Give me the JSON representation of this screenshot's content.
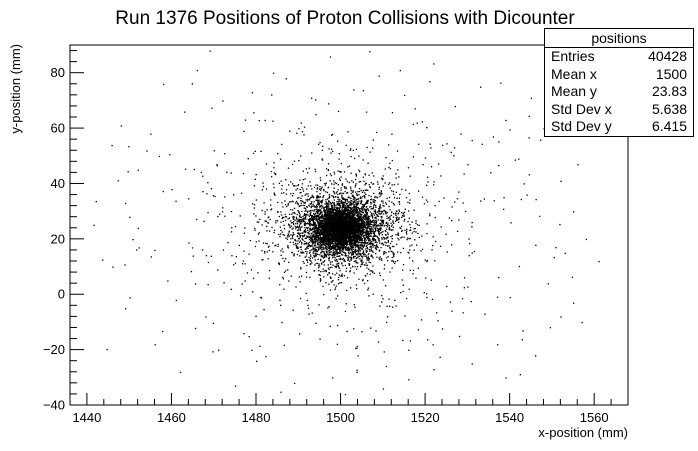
{
  "chart_data": {
    "type": "scatter",
    "title": "Run 1376 Positions of Proton Collisions with Dicounter",
    "xlabel": "x-position (mm)",
    "ylabel": "y-position (mm)",
    "xlim": [
      1436,
      1568
    ],
    "ylim": [
      -40,
      90
    ],
    "xticks": [
      1440,
      1460,
      1480,
      1500,
      1520,
      1540,
      1560
    ],
    "yticks": [
      -40,
      -20,
      0,
      20,
      40,
      60,
      80
    ],
    "grid": false,
    "series": [
      {
        "name": "positions",
        "center": [
          1500,
          23.83
        ],
        "std": [
          5.638,
          6.415
        ],
        "count": 40428,
        "background_points": [
          [
            1448,
            61
          ],
          [
            1452,
            45
          ],
          [
            1455,
            58
          ],
          [
            1458,
            76
          ],
          [
            1460,
            38
          ],
          [
            1463,
            66
          ],
          [
            1466,
            81
          ],
          [
            1470,
            52
          ],
          [
            1472,
            70
          ],
          [
            1474,
            44
          ],
          [
            1477,
            59
          ],
          [
            1479,
            73
          ],
          [
            1482,
            63
          ],
          [
            1485,
            51
          ],
          [
            1487,
            78
          ],
          [
            1490,
            60
          ],
          [
            1493,
            71
          ],
          [
            1495,
            55
          ],
          [
            1497,
            69
          ],
          [
            1503,
            74
          ],
          [
            1506,
            66
          ],
          [
            1509,
            79
          ],
          [
            1512,
            58
          ],
          [
            1515,
            72
          ],
          [
            1518,
            62
          ],
          [
            1521,
            77
          ],
          [
            1524,
            54
          ],
          [
            1527,
            68
          ],
          [
            1530,
            47
          ],
          [
            1533,
            75
          ],
          [
            1536,
            57
          ],
          [
            1539,
            63
          ],
          [
            1542,
            49
          ],
          [
            1545,
            71
          ],
          [
            1548,
            60
          ],
          [
            1552,
            41
          ],
          [
            1555,
            30
          ],
          [
            1558,
            20
          ],
          [
            1561,
            12
          ],
          [
            1446,
            10
          ],
          [
            1449,
            -5
          ],
          [
            1452,
            24
          ],
          [
            1456,
            -18
          ],
          [
            1459,
            5
          ],
          [
            1462,
            -28
          ],
          [
            1465,
            14
          ],
          [
            1468,
            -8
          ],
          [
            1471,
            -20
          ],
          [
            1474,
            2
          ],
          [
            1477,
            -14
          ],
          [
            1480,
            -24
          ],
          [
            1483,
            6
          ],
          [
            1486,
            -10
          ],
          [
            1489,
            -32
          ],
          [
            1492,
            -2
          ],
          [
            1495,
            -16
          ],
          [
            1498,
            -30
          ],
          [
            1501,
            -6
          ],
          [
            1504,
            -22
          ],
          [
            1507,
            -12
          ],
          [
            1510,
            -34
          ],
          [
            1513,
            -4
          ],
          [
            1516,
            -20
          ],
          [
            1519,
            -9
          ],
          [
            1522,
            -27
          ],
          [
            1525,
            3
          ],
          [
            1528,
            -15
          ],
          [
            1531,
            -25
          ],
          [
            1534,
            -7
          ],
          [
            1537,
            -18
          ],
          [
            1540,
            -1
          ],
          [
            1543,
            -13
          ],
          [
            1546,
            -22
          ],
          [
            1549,
            4
          ],
          [
            1552,
            -8
          ],
          [
            1555,
            -3
          ],
          [
            1449,
            33
          ],
          [
            1557,
            -10
          ],
          [
            1450,
            28
          ],
          [
            1553,
            15
          ],
          [
            1457,
            50
          ],
          [
            1544,
            36
          ],
          [
            1469,
            88
          ],
          [
            1484,
            80
          ],
          [
            1514,
            81
          ],
          [
            1461,
            -2
          ],
          [
            1539,
            -30
          ],
          [
            1475,
            -33
          ],
          [
            1501,
            -36
          ],
          [
            1556,
            47
          ]
        ]
      }
    ]
  },
  "stats": {
    "title": "positions",
    "rows": [
      {
        "label": "Entries",
        "value": "40428"
      },
      {
        "label": "Mean x",
        "value": "1500"
      },
      {
        "label": "Mean y",
        "value": "23.83"
      },
      {
        "label": "Std Dev x",
        "value": "5.638"
      },
      {
        "label": "Std Dev y",
        "value": "6.415"
      }
    ]
  }
}
